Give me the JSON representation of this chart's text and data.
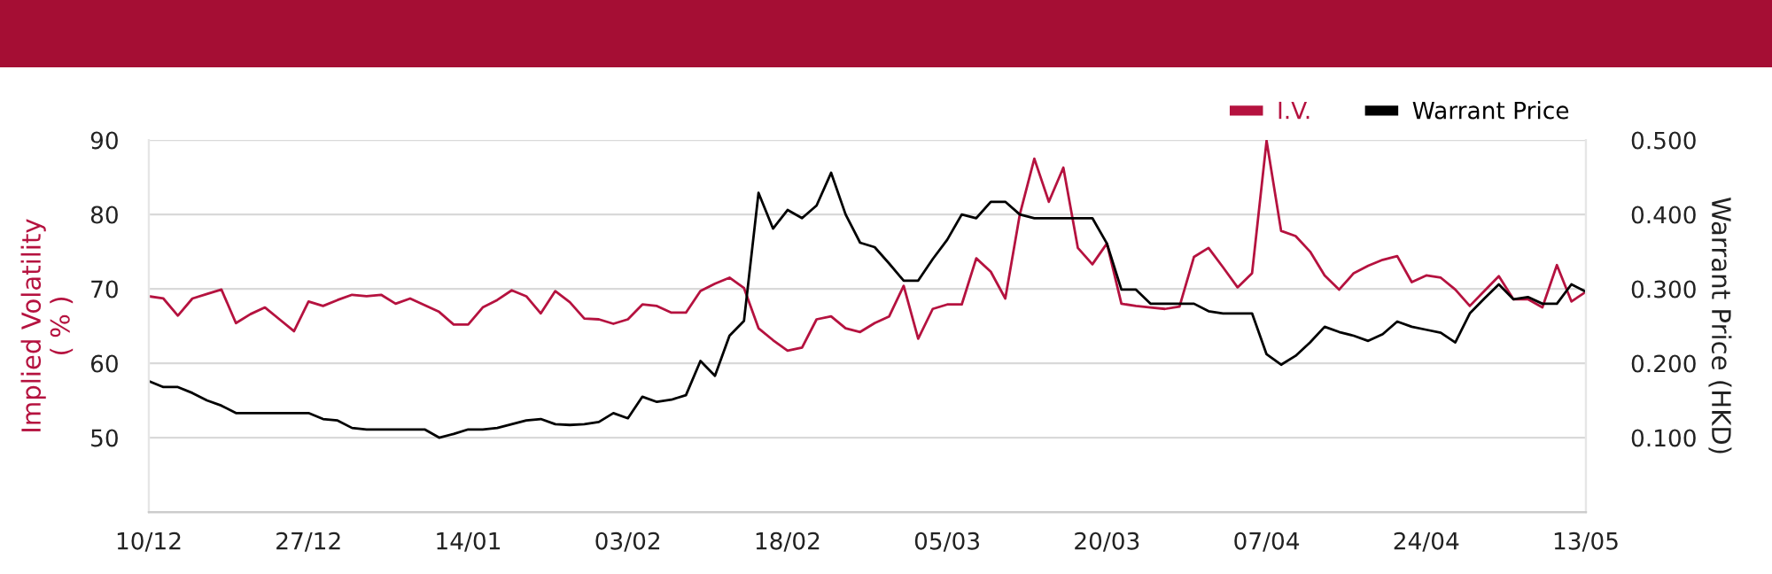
{
  "chart_data": {
    "type": "line",
    "categories": [
      "10/12",
      null,
      null,
      null,
      null,
      null,
      null,
      null,
      null,
      null,
      null,
      "27/12",
      null,
      null,
      null,
      null,
      null,
      null,
      null,
      null,
      null,
      null,
      "14/01",
      null,
      null,
      null,
      null,
      null,
      null,
      null,
      null,
      null,
      null,
      "03/02",
      null,
      null,
      null,
      null,
      null,
      null,
      null,
      null,
      null,
      null,
      "18/02",
      null,
      null,
      null,
      null,
      null,
      null,
      null,
      null,
      null,
      null,
      "05/03",
      null,
      null,
      null,
      null,
      null,
      null,
      null,
      null,
      null,
      null,
      "20/03",
      null,
      null,
      null,
      null,
      null,
      null,
      null,
      null,
      null,
      null,
      "07/04",
      null,
      null,
      null,
      null,
      null,
      null,
      null,
      null,
      null,
      null,
      "24/04",
      null,
      null,
      null,
      null,
      null,
      null,
      null,
      null,
      null,
      null,
      "13/05"
    ],
    "series": [
      {
        "name": "I.V.",
        "color": "#b5123f",
        "values": [
          69.0,
          68.7,
          66.4,
          68.7,
          69.3,
          69.9,
          65.4,
          66.6,
          67.5,
          65.9,
          64.3,
          68.3,
          67.7,
          68.5,
          69.2,
          69.0,
          69.2,
          68.0,
          68.7,
          67.8,
          66.9,
          65.2,
          65.2,
          67.5,
          68.5,
          69.8,
          69.0,
          66.7,
          69.7,
          68.2,
          66.0,
          65.9,
          65.3,
          65.9,
          67.9,
          67.7,
          66.8,
          66.8,
          69.7,
          70.7,
          71.5,
          70.1,
          64.7,
          63.1,
          61.7,
          62.1,
          65.9,
          66.3,
          64.7,
          64.2,
          65.4,
          66.3,
          70.4,
          63.3,
          67.3,
          67.9,
          67.9,
          74.1,
          72.3,
          68.7,
          80.0,
          87.5,
          81.7,
          86.3,
          75.5,
          73.3,
          76.1,
          68.0,
          67.7,
          67.5,
          67.3,
          67.6,
          74.3,
          75.5,
          72.9,
          70.2,
          72.1,
          89.9,
          77.8,
          77.1,
          75.0,
          71.8,
          69.9,
          72.1,
          73.1,
          73.9,
          74.4,
          70.9,
          71.8,
          71.5,
          69.9,
          67.7,
          69.7,
          71.7,
          68.6,
          68.6,
          67.5,
          73.2,
          68.3,
          69.6
        ]
      },
      {
        "name": "Warrant Price",
        "color": "#000000",
        "axis": "y2",
        "values": [
          0.176,
          0.168,
          0.168,
          0.16,
          0.15,
          0.143,
          0.133,
          0.133,
          0.133,
          0.133,
          0.133,
          0.133,
          0.125,
          0.123,
          0.113,
          0.111,
          0.111,
          0.111,
          0.111,
          0.111,
          0.1,
          0.105,
          0.111,
          0.111,
          0.113,
          0.118,
          0.123,
          0.125,
          0.118,
          0.117,
          0.118,
          0.121,
          0.133,
          0.126,
          0.155,
          0.148,
          0.151,
          0.157,
          0.203,
          0.183,
          0.237,
          0.257,
          0.429,
          0.381,
          0.406,
          0.395,
          0.412,
          0.456,
          0.4,
          0.362,
          0.356,
          0.334,
          0.311,
          0.311,
          0.34,
          0.366,
          0.4,
          0.395,
          0.417,
          0.417,
          0.4,
          0.395,
          0.395,
          0.395,
          0.395,
          0.395,
          0.361,
          0.299,
          0.299,
          0.28,
          0.28,
          0.28,
          0.28,
          0.27,
          0.267,
          0.267,
          0.267,
          0.212,
          0.198,
          0.21,
          0.228,
          0.249,
          0.242,
          0.237,
          0.23,
          0.239,
          0.256,
          0.249,
          0.245,
          0.241,
          0.228,
          0.267,
          0.287,
          0.306,
          0.286,
          0.289,
          0.28,
          0.28,
          0.306,
          0.296
        ]
      }
    ],
    "ylabel": "Implied Volatility\n( % )",
    "y2label": "Warrant Price (HKD)",
    "ylim": [
      40,
      90
    ],
    "yticks": [
      50,
      60,
      70,
      80,
      90
    ],
    "y2lim": [
      0,
      0.5
    ],
    "y2ticks": [
      {
        "value": 0.1,
        "label": "0.100"
      },
      {
        "value": 0.2,
        "label": "0.200"
      },
      {
        "value": 0.3,
        "label": "0.300"
      },
      {
        "value": 0.4,
        "label": "0.400"
      },
      {
        "value": 0.5,
        "label": "0.500"
      }
    ],
    "grid": "y",
    "legend": "top right",
    "marker": "none",
    "line_style": "solid"
  }
}
